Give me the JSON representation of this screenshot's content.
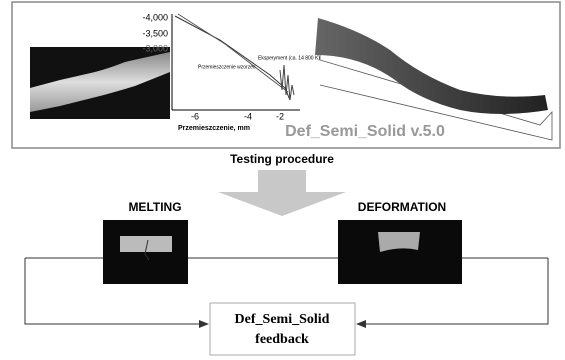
{
  "graph": {
    "y_ticks": [
      "-4,000",
      "-3,500",
      "-3,000"
    ],
    "x_ticks": [
      "-6",
      "-4",
      "-2"
    ],
    "x_label": "Przemieszczenie, mm",
    "annotations": [
      "Eksperyment (ca. 14 800 K)",
      "Przemieszczenie wzorzec"
    ]
  },
  "software": "Def_Semi_Solid v.5.0",
  "caption": "Testing procedure",
  "steps": [
    "MELTING",
    "DEFORMATION"
  ],
  "feedback": {
    "lines": [
      "Def_Semi_Solid",
      "feedback"
    ]
  }
}
